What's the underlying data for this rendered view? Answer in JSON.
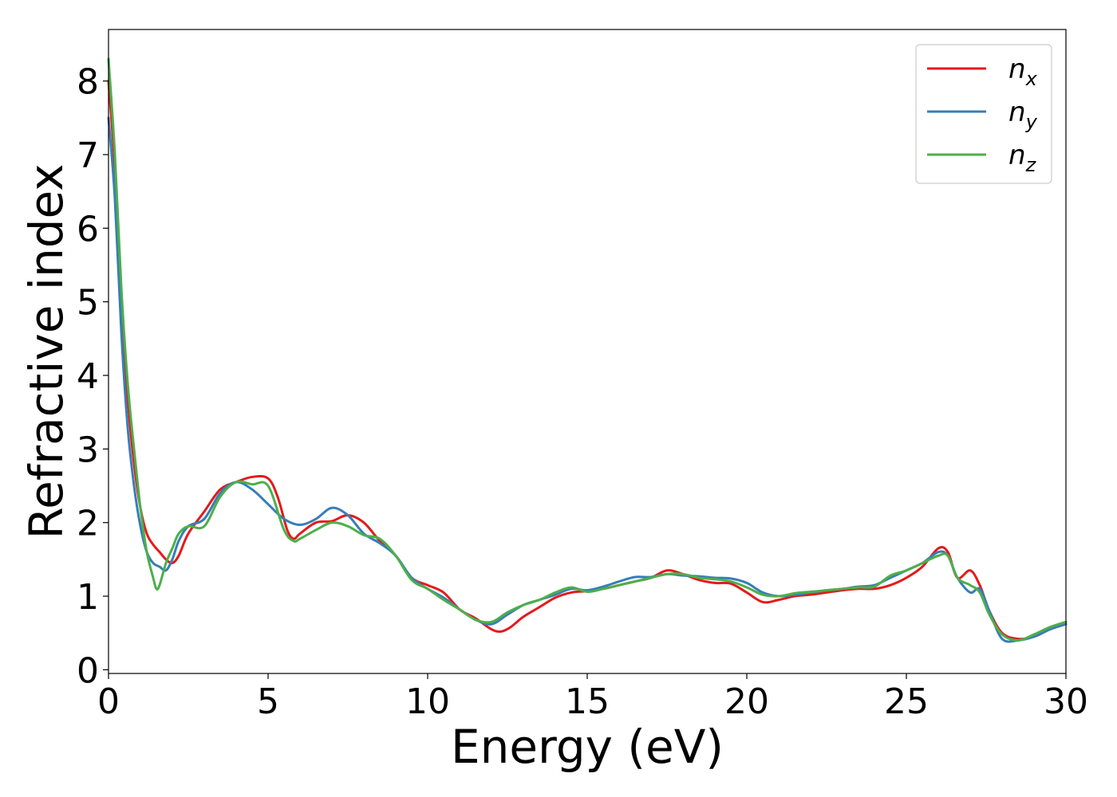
{
  "chart_data": {
    "type": "line",
    "xlabel": "Energy (eV)",
    "ylabel": "Refractive index",
    "xlim": [
      0,
      30
    ],
    "ylim": [
      -0.05,
      8.7
    ],
    "xticks": [
      0,
      5,
      10,
      15,
      20,
      25,
      30
    ],
    "yticks": [
      0,
      1,
      2,
      3,
      4,
      5,
      6,
      7,
      8
    ],
    "grid": false,
    "legend_position": "top-right",
    "series": [
      {
        "name": "n_x",
        "label_main": "n",
        "label_sub": "x",
        "color": "#e41a1c",
        "x": [
          0,
          0.2,
          0.4,
          0.6,
          0.8,
          1.0,
          1.2,
          1.4,
          1.6,
          1.8,
          2.0,
          2.2,
          2.5,
          3.0,
          3.5,
          4.0,
          4.5,
          5.0,
          5.3,
          5.6,
          5.8,
          6.0,
          6.5,
          7.0,
          7.5,
          8.0,
          8.5,
          9.0,
          9.5,
          10.0,
          10.5,
          11.0,
          11.5,
          12.0,
          12.3,
          12.6,
          13.0,
          13.5,
          14.0,
          14.5,
          15.0,
          15.5,
          16.0,
          16.5,
          17.0,
          17.5,
          18.0,
          18.5,
          19.0,
          19.5,
          20.0,
          20.5,
          21.0,
          21.5,
          22.0,
          22.5,
          23.0,
          23.5,
          24.0,
          24.5,
          25.0,
          25.5,
          26.0,
          26.3,
          26.6,
          27.0,
          27.3,
          27.6,
          28.0,
          28.5,
          29.0,
          29.5,
          30.0
        ],
        "y": [
          8.0,
          6.8,
          5.0,
          3.7,
          2.8,
          2.2,
          1.85,
          1.7,
          1.6,
          1.5,
          1.45,
          1.55,
          1.85,
          2.15,
          2.45,
          2.55,
          2.62,
          2.6,
          2.35,
          1.9,
          1.78,
          1.85,
          2.0,
          2.02,
          2.1,
          2.0,
          1.75,
          1.55,
          1.25,
          1.15,
          1.05,
          0.82,
          0.7,
          0.55,
          0.52,
          0.58,
          0.72,
          0.85,
          0.98,
          1.05,
          1.07,
          1.1,
          1.15,
          1.2,
          1.25,
          1.35,
          1.3,
          1.22,
          1.18,
          1.17,
          1.05,
          0.92,
          0.95,
          1.0,
          1.02,
          1.05,
          1.08,
          1.1,
          1.1,
          1.15,
          1.25,
          1.4,
          1.65,
          1.6,
          1.25,
          1.35,
          1.15,
          0.8,
          0.5,
          0.42,
          0.45,
          0.55,
          0.62
        ]
      },
      {
        "name": "n_y",
        "label_main": "n",
        "label_sub": "y",
        "color": "#377eb8",
        "x": [
          0,
          0.2,
          0.4,
          0.6,
          0.8,
          1.0,
          1.2,
          1.4,
          1.6,
          1.8,
          2.0,
          2.2,
          2.5,
          3.0,
          3.5,
          4.0,
          4.5,
          5.0,
          5.5,
          6.0,
          6.5,
          7.0,
          7.5,
          8.0,
          8.5,
          9.0,
          9.5,
          10.0,
          10.5,
          11.0,
          11.5,
          12.0,
          12.5,
          13.0,
          13.5,
          14.0,
          14.5,
          15.0,
          15.5,
          16.0,
          16.5,
          17.0,
          17.5,
          18.0,
          18.5,
          19.0,
          19.5,
          20.0,
          20.5,
          21.0,
          21.5,
          22.0,
          22.5,
          23.0,
          23.5,
          24.0,
          24.5,
          25.0,
          25.5,
          26.0,
          26.3,
          26.6,
          27.0,
          27.3,
          27.6,
          28.0,
          28.5,
          29.0,
          29.5,
          30.0
        ],
        "y": [
          7.5,
          6.4,
          4.6,
          3.3,
          2.5,
          1.95,
          1.6,
          1.45,
          1.4,
          1.35,
          1.5,
          1.75,
          1.95,
          2.05,
          2.4,
          2.55,
          2.45,
          2.25,
          2.05,
          1.97,
          2.05,
          2.2,
          2.1,
          1.85,
          1.72,
          1.55,
          1.25,
          1.1,
          0.98,
          0.82,
          0.68,
          0.62,
          0.75,
          0.88,
          0.95,
          1.02,
          1.1,
          1.08,
          1.13,
          1.2,
          1.26,
          1.26,
          1.3,
          1.28,
          1.27,
          1.25,
          1.24,
          1.18,
          1.05,
          1.0,
          1.02,
          1.05,
          1.08,
          1.1,
          1.13,
          1.15,
          1.25,
          1.35,
          1.45,
          1.6,
          1.55,
          1.25,
          1.05,
          1.1,
          0.8,
          0.42,
          0.4,
          0.45,
          0.55,
          0.62
        ]
      },
      {
        "name": "n_z",
        "label_main": "n",
        "label_sub": "z",
        "color": "#4daf4a",
        "x": [
          0,
          0.2,
          0.4,
          0.6,
          0.8,
          1.0,
          1.2,
          1.4,
          1.5,
          1.6,
          1.8,
          2.0,
          2.2,
          2.5,
          3.0,
          3.5,
          4.0,
          4.5,
          5.0,
          5.5,
          5.8,
          6.0,
          6.5,
          7.0,
          7.5,
          8.0,
          8.5,
          9.0,
          9.5,
          10.0,
          10.5,
          11.0,
          11.5,
          12.0,
          12.5,
          13.0,
          13.5,
          14.0,
          14.5,
          15.0,
          15.5,
          16.0,
          16.5,
          17.0,
          17.5,
          18.0,
          18.5,
          19.0,
          19.5,
          20.0,
          20.5,
          21.0,
          21.5,
          22.0,
          22.5,
          23.0,
          23.5,
          24.0,
          24.5,
          25.0,
          25.5,
          26.0,
          26.3,
          26.6,
          27.0,
          27.3,
          27.6,
          28.0,
          28.5,
          29.0,
          29.5,
          30.0
        ],
        "y": [
          8.3,
          7.0,
          5.2,
          3.9,
          3.0,
          2.2,
          1.6,
          1.25,
          1.1,
          1.15,
          1.45,
          1.65,
          1.85,
          1.95,
          1.95,
          2.35,
          2.55,
          2.52,
          2.5,
          1.9,
          1.75,
          1.78,
          1.9,
          2.0,
          1.95,
          1.83,
          1.78,
          1.55,
          1.22,
          1.1,
          0.95,
          0.82,
          0.68,
          0.65,
          0.78,
          0.88,
          0.95,
          1.05,
          1.12,
          1.06,
          1.1,
          1.15,
          1.2,
          1.25,
          1.3,
          1.3,
          1.25,
          1.23,
          1.2,
          1.12,
          1.02,
          1.0,
          1.04,
          1.06,
          1.08,
          1.1,
          1.12,
          1.13,
          1.28,
          1.35,
          1.45,
          1.55,
          1.55,
          1.25,
          1.15,
          1.05,
          0.75,
          0.48,
          0.4,
          0.48,
          0.58,
          0.65
        ]
      }
    ]
  }
}
